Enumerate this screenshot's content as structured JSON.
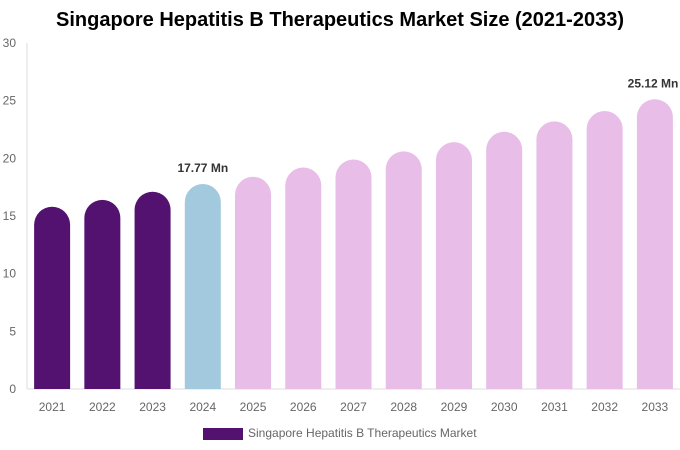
{
  "chart_data": {
    "type": "bar",
    "title": "Singapore Hepatitis B Therapeutics Market Size (2021-2033)",
    "categories": [
      "2021",
      "2022",
      "2023",
      "2024",
      "2025",
      "2026",
      "2027",
      "2028",
      "2029",
      "2030",
      "2031",
      "2032",
      "2033"
    ],
    "series": [
      {
        "name": "Singapore Hepatitis B Therapeutics Market",
        "values": [
          15.8,
          16.4,
          17.1,
          17.77,
          18.4,
          19.2,
          19.9,
          20.6,
          21.4,
          22.3,
          23.2,
          24.1,
          25.12
        ]
      }
    ],
    "data_labels": [
      {
        "category": "2024",
        "text": "17.77 Mn"
      },
      {
        "category": "2033",
        "text": "25.12 Mn"
      }
    ],
    "ylim": [
      0,
      30
    ],
    "yticks": [
      0,
      5,
      10,
      15,
      20,
      25,
      30
    ],
    "grid": false,
    "legend": "bottom",
    "colors": {
      "historical": "#541270",
      "base_year": "#a3c9de",
      "forecast": "#e8bde8"
    }
  }
}
